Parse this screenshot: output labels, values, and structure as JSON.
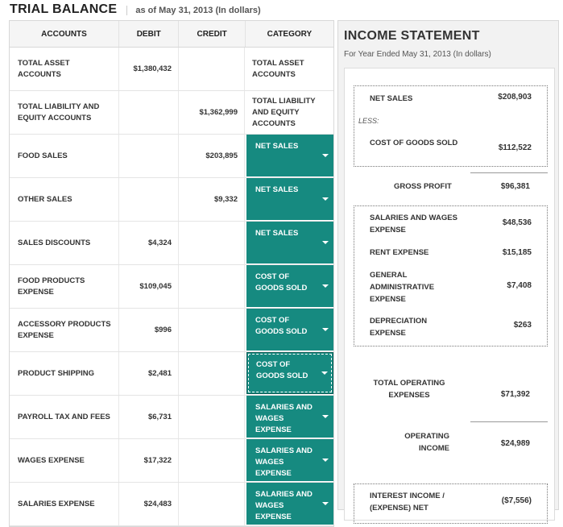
{
  "trial_balance": {
    "title": "TRIAL BALANCE",
    "subtitle": "as of May 31, 2013 (In dollars)",
    "columns": [
      "ACCOUNTS",
      "DEBIT",
      "CREDIT",
      "CATEGORY"
    ],
    "rows": [
      {
        "account": "TOTAL ASSET ACCOUNTS",
        "debit": "$1,380,432",
        "credit": "",
        "category": "TOTAL ASSET ACCOUNTS"
      },
      {
        "account": "TOTAL LIABILITY AND EQUITY ACCOUNTS",
        "debit": "",
        "credit": "$1,362,999",
        "category": "TOTAL LIABILITY AND EQUITY ACCOUNTS"
      },
      {
        "account": "FOOD SALES",
        "debit": "",
        "credit": "$203,895",
        "category": "NET SALES"
      },
      {
        "account": "OTHER SALES",
        "debit": "",
        "credit": "$9,332",
        "category": "NET SALES"
      },
      {
        "account": "SALES DISCOUNTS",
        "debit": "$4,324",
        "credit": "",
        "category": "NET SALES"
      },
      {
        "account": "FOOD PRODUCTS EXPENSE",
        "debit": "$109,045",
        "credit": "",
        "category": "COST OF GOODS SOLD"
      },
      {
        "account": "ACCESSORY PRODUCTS EXPENSE",
        "debit": "$996",
        "credit": "",
        "category": "COST OF GOODS SOLD"
      },
      {
        "account": "PRODUCT SHIPPING",
        "debit": "$2,481",
        "credit": "",
        "category": "COST OF GOODS SOLD"
      },
      {
        "account": "PAYROLL TAX AND FEES",
        "debit": "$6,731",
        "credit": "",
        "category": "SALARIES AND WAGES EXPENSE"
      },
      {
        "account": "WAGES EXPENSE",
        "debit": "$17,322",
        "credit": "",
        "category": "SALARIES AND WAGES EXPENSE"
      },
      {
        "account": "SALARIES EXPENSE",
        "debit": "$24,483",
        "credit": "",
        "category": "SALARIES AND WAGES EXPENSE"
      }
    ]
  },
  "income_statement": {
    "title": "INCOME STATEMENT",
    "subtitle": "For Year Ended May 31, 2013 (In dollars)",
    "net_sales_label": "NET SALES",
    "net_sales_value": "$208,903",
    "less_label": "LESS:",
    "cogs_label": "COST OF  GOODS SOLD",
    "cogs_value": "$112,522",
    "gross_profit_label": "GROSS PROFIT",
    "gross_profit_value": "$96,381",
    "salaries_label": "SALARIES AND WAGES EXPENSE",
    "salaries_value": "$48,536",
    "rent_label": "RENT EXPENSE",
    "rent_value": "$15,185",
    "general_label": "GENERAL ADMINISTRATIVE EXPENSE",
    "general_value": "$7,408",
    "depreciation_label": "DEPRECIATION EXPENSE",
    "depreciation_value": "$263",
    "total_opex_label": "TOTAL OPERATING EXPENSES",
    "total_opex_value": "$71,392",
    "operating_income_label": "OPERATING INCOME",
    "operating_income_value": "$24,989",
    "interest_label": "INTEREST INCOME / (EXPENSE) NET",
    "interest_value": "($7,556)"
  }
}
